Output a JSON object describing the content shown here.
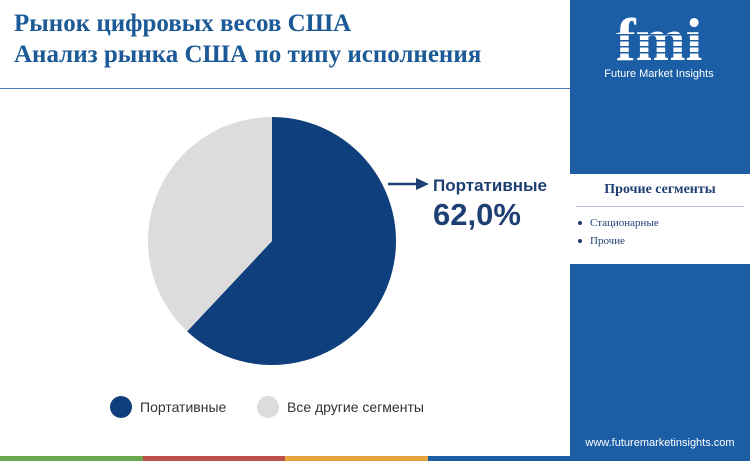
{
  "header": {
    "title_line1": "Рынок цифровых весов США",
    "title_line2": "Анализ рынка США по типу исполнения"
  },
  "chart_data": {
    "type": "pie",
    "slices": [
      {
        "name": "Портативные",
        "value": 62.0,
        "color": "#0f3f7c"
      },
      {
        "name": "Все другие сегменты",
        "value": 38.0,
        "color": "#dcdcdc"
      }
    ],
    "callout": {
      "label": "Портативные",
      "value_text": "62,0%"
    },
    "legend": [
      {
        "label": "Портативные",
        "color": "#0f3f7c"
      },
      {
        "label": "Все другие сегменты",
        "color": "#dcdcdc"
      }
    ],
    "legend_position": "bottom"
  },
  "sidebar": {
    "logo_text": "fmi",
    "logo_subtitle": "Future Market Insights",
    "segments_title": "Прочие сегменты",
    "segments": [
      "Стационарные",
      "Прочие"
    ],
    "website": "www.futuremarketinsights.com"
  },
  "colors": {
    "sidebar": "#1b5ea6",
    "title": "#1b5a96",
    "accent_dark": "#0f3f7c",
    "bottom_bar": [
      "#6aa84f",
      "#c0504d",
      "#e8a33d",
      "#1b5ea6"
    ]
  }
}
